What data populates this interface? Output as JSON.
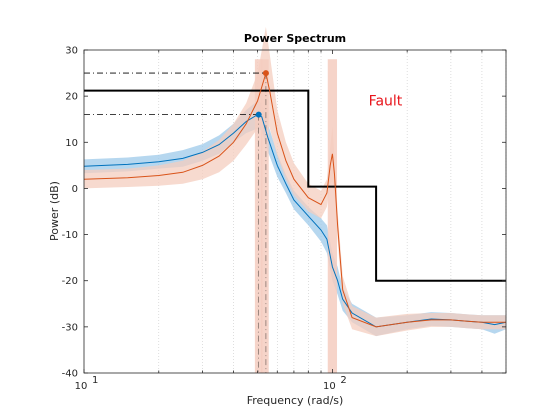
{
  "chart_data": {
    "type": "line",
    "title": "Power Spectrum",
    "xlabel": "Frequency  (rad/s)",
    "ylabel": "Power (dB)",
    "xscale": "log",
    "xlim": [
      10,
      500
    ],
    "ylim": [
      -40,
      30
    ],
    "y_ticks": [
      30,
      20,
      10,
      0,
      -10,
      -20,
      -30,
      -40
    ],
    "x_ticks": [
      {
        "value": 10,
        "base": "10",
        "exp": "1"
      },
      {
        "value": 100,
        "base": "10",
        "exp": "2"
      }
    ],
    "grid": "x-minor-dotted",
    "series": [
      {
        "color": "#0072BD",
        "band_color": "#9ECAE9",
        "x": [
          10,
          15,
          20,
          25,
          30,
          35,
          40,
          45,
          50,
          52,
          55,
          60,
          65,
          70,
          80,
          90,
          95,
          100,
          105,
          110,
          120,
          150,
          200,
          250,
          300,
          350,
          400,
          450,
          500
        ],
        "y": [
          4.8,
          5.2,
          5.8,
          6.5,
          7.8,
          9.5,
          12,
          14.5,
          16,
          15.5,
          11,
          5,
          1,
          -2.5,
          -6,
          -9,
          -11,
          -17,
          -20,
          -24,
          -27,
          -30,
          -29,
          -28.3,
          -28.5,
          -28.8,
          -29,
          -29.5,
          -29
        ],
        "band": [
          1.5,
          1.5,
          1.5,
          1.8,
          1.8,
          2,
          2,
          2.5,
          3,
          3,
          3,
          2.5,
          2,
          2,
          2,
          2.5,
          3,
          3,
          3,
          2.5,
          2,
          2,
          1.5,
          1.5,
          1.5,
          1.5,
          1.5,
          2,
          1.5
        ]
      },
      {
        "color": "#D95319",
        "band_color": "#F4CDBF",
        "x": [
          10,
          15,
          20,
          25,
          30,
          35,
          40,
          45,
          50,
          52,
          54,
          56,
          60,
          65,
          70,
          80,
          90,
          95,
          98,
          100,
          102,
          105,
          110,
          120,
          150,
          200,
          250,
          300,
          350,
          400,
          450,
          500
        ],
        "y": [
          2,
          2.3,
          2.8,
          3.5,
          5,
          7,
          10,
          14,
          19,
          22,
          25,
          21,
          12,
          6,
          2,
          -2,
          -3.5,
          -1,
          5,
          7.5,
          3,
          -8,
          -22,
          -28,
          -30,
          -29,
          -28.5,
          -28.5,
          -28.8,
          -29,
          -29,
          -29
        ],
        "band": [
          2,
          2,
          2.2,
          2.5,
          3,
          3.5,
          4,
          4.5,
          6,
          8,
          10,
          8,
          5,
          4,
          3.5,
          3,
          3,
          3,
          4,
          6,
          4,
          3,
          3,
          2.5,
          2,
          1.8,
          1.5,
          1.5,
          1.5,
          1.5,
          1.5,
          1.5
        ]
      }
    ],
    "band_spikes": [
      {
        "x": 50.5,
        "w_frac": 0.018
      },
      {
        "x": 53.5,
        "w_frac": 0.018
      },
      {
        "x": 100,
        "w_frac": 0.022
      }
    ],
    "peaks": [
      {
        "x": 50.5,
        "y": 16,
        "color": "#0072BD"
      },
      {
        "x": 54,
        "y": 25,
        "color": "#D95319"
      }
    ],
    "threshold": {
      "color": "#000000",
      "x": [
        10,
        80,
        80,
        150,
        150,
        500
      ],
      "y": [
        21.2,
        21.2,
        0.4,
        0.4,
        -20,
        -20
      ]
    },
    "annotation": {
      "text": "Fault",
      "color": "#E8141B",
      "x": 140,
      "y": 18
    }
  }
}
